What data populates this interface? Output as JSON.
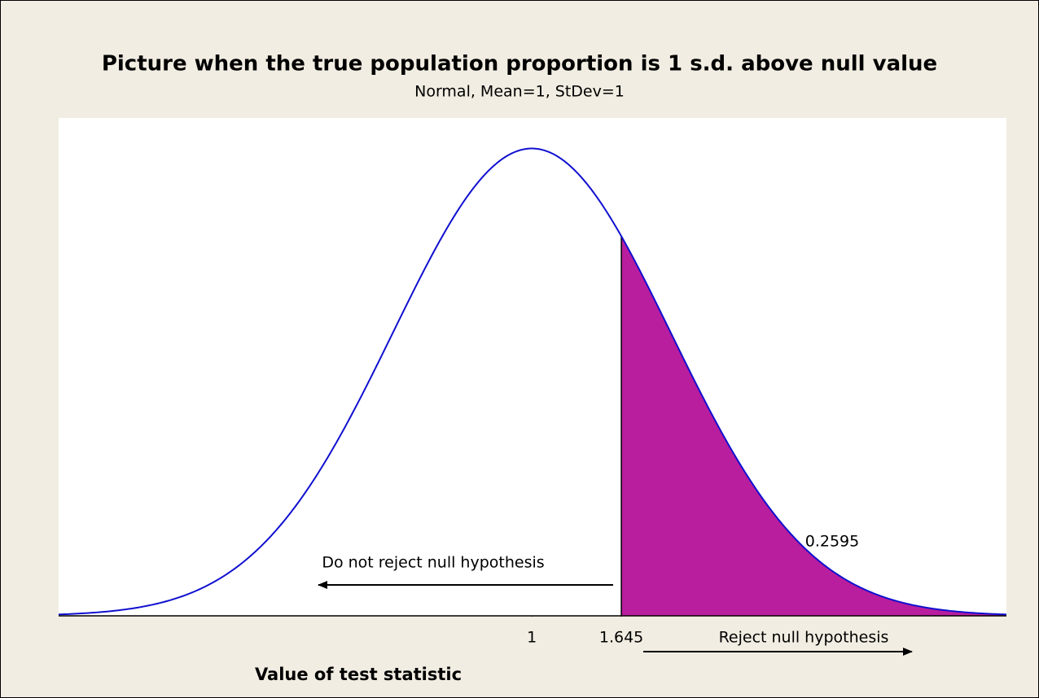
{
  "chart_data": {
    "type": "normal",
    "title": "Picture when the true population proportion is 1 s.d. above null value",
    "subtitle": "Normal, Mean=1, StDev=1",
    "xlabel": "Value of test statistic",
    "mean": 1,
    "stdev": 1,
    "shade_from": 1.645,
    "shaded_area": 0.2595,
    "xlim": [
      -2.41,
      4.42
    ],
    "ylim": [
      0,
      0.425
    ],
    "xticks": [
      1,
      1.645
    ],
    "curve_color": "#1010d0",
    "fill_color": "#b81e9e",
    "annotations": [
      "Do not reject null hypothesis",
      "Reject null hypothesis"
    ]
  }
}
